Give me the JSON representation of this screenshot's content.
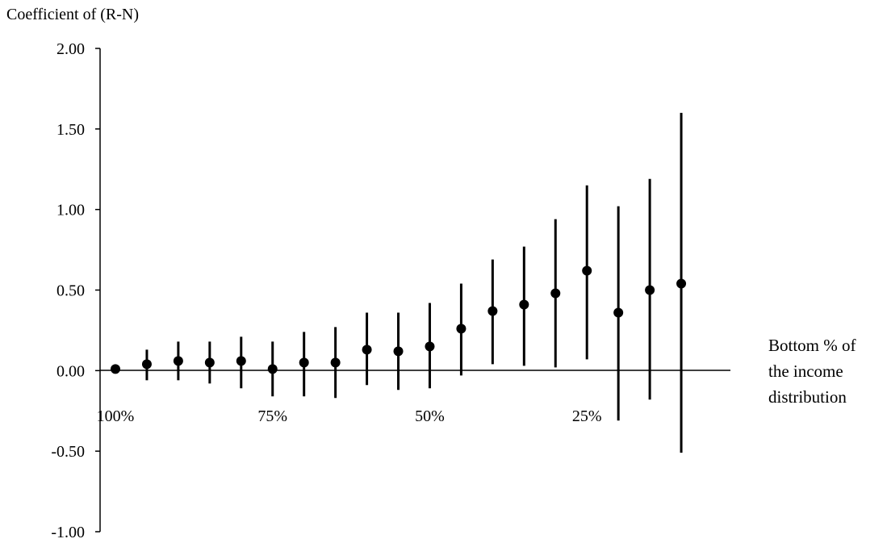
{
  "chart_data": {
    "type": "scatter",
    "ylabel": "Coefficient of (R-N)",
    "xlabel_lines": [
      "Bottom % of",
      "the income",
      "distribution"
    ],
    "yticks": [
      "2.00",
      "1.50",
      "1.00",
      "0.50",
      "0.00",
      "-0.50",
      "-1.00"
    ],
    "ytick_values": [
      2.0,
      1.5,
      1.0,
      0.5,
      0.0,
      -0.5,
      -1.0
    ],
    "ylim": [
      -1.0,
      2.0
    ],
    "xlim": [
      100,
      5
    ],
    "xticks": [
      {
        "label": "100%",
        "x": 100
      },
      {
        "label": "75%",
        "x": 75
      },
      {
        "label": "50%",
        "x": 50
      },
      {
        "label": "25%",
        "x": 25
      }
    ],
    "grid": false,
    "series": [
      {
        "points": [
          {
            "x": 100,
            "y": 0.01,
            "low": 0.01,
            "high": 0.01
          },
          {
            "x": 95,
            "y": 0.04,
            "low": -0.06,
            "high": 0.13
          },
          {
            "x": 90,
            "y": 0.06,
            "low": -0.06,
            "high": 0.18
          },
          {
            "x": 85,
            "y": 0.05,
            "low": -0.08,
            "high": 0.18
          },
          {
            "x": 80,
            "y": 0.06,
            "low": -0.11,
            "high": 0.21
          },
          {
            "x": 75,
            "y": 0.01,
            "low": -0.16,
            "high": 0.18
          },
          {
            "x": 70,
            "y": 0.05,
            "low": -0.16,
            "high": 0.24
          },
          {
            "x": 65,
            "y": 0.05,
            "low": -0.17,
            "high": 0.27
          },
          {
            "x": 60,
            "y": 0.13,
            "low": -0.09,
            "high": 0.36
          },
          {
            "x": 55,
            "y": 0.12,
            "low": -0.12,
            "high": 0.36
          },
          {
            "x": 50,
            "y": 0.15,
            "low": -0.11,
            "high": 0.42
          },
          {
            "x": 45,
            "y": 0.26,
            "low": -0.03,
            "high": 0.54
          },
          {
            "x": 40,
            "y": 0.37,
            "low": 0.04,
            "high": 0.69
          },
          {
            "x": 35,
            "y": 0.41,
            "low": 0.03,
            "high": 0.77
          },
          {
            "x": 30,
            "y": 0.48,
            "low": 0.02,
            "high": 0.94
          },
          {
            "x": 25,
            "y": 0.62,
            "low": 0.07,
            "high": 1.15
          },
          {
            "x": 20,
            "y": 0.36,
            "low": -0.31,
            "high": 1.02
          },
          {
            "x": 15,
            "y": 0.5,
            "low": -0.18,
            "high": 1.19
          },
          {
            "x": 10,
            "y": 0.54,
            "low": -0.51,
            "high": 1.6
          }
        ]
      }
    ]
  }
}
